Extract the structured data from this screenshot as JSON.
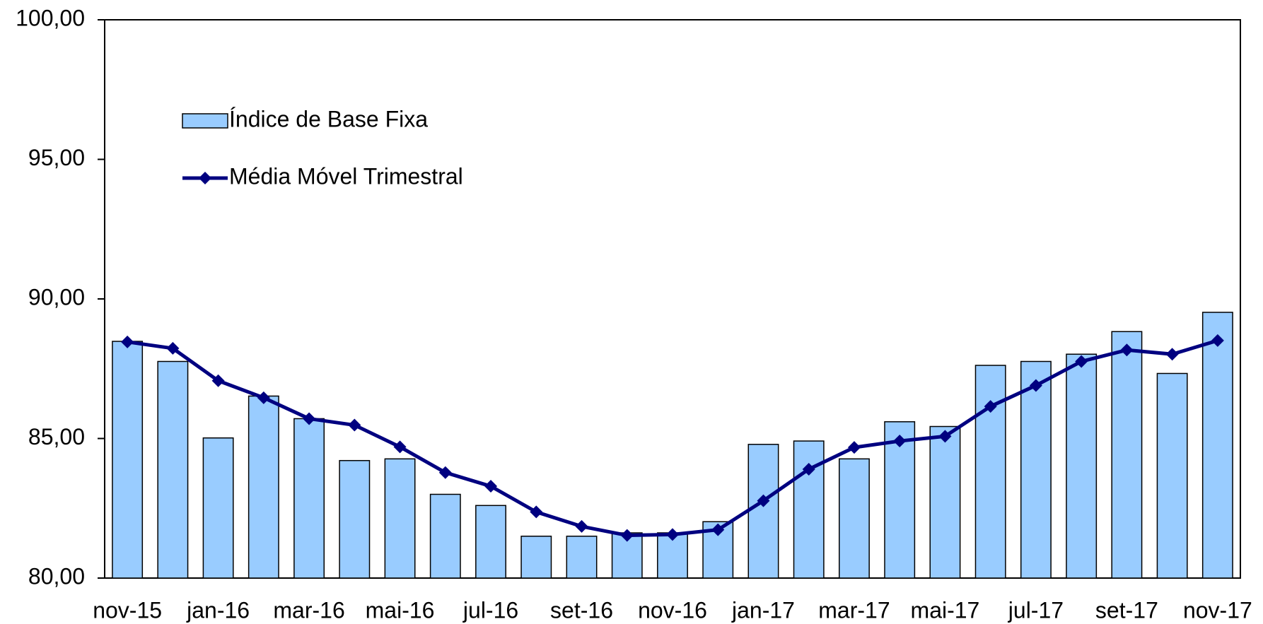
{
  "chart_data": {
    "type": "bar_line",
    "categories": [
      "nov-15",
      null,
      "jan-16",
      null,
      "mar-16",
      null,
      "mai-16",
      null,
      "jul-16",
      null,
      "set-16",
      null,
      "nov-16",
      null,
      "jan-17",
      null,
      "mar-17",
      null,
      "mai-17",
      null,
      "jul-17",
      null,
      "set-17",
      null,
      "nov-17"
    ],
    "series": [
      {
        "name": "Índice de Base Fixa",
        "type": "bar",
        "color": "#99ccff",
        "values": [
          88.48,
          87.76,
          85.02,
          86.52,
          85.71,
          84.21,
          84.27,
          83.0,
          82.6,
          81.5,
          81.5,
          81.62,
          81.62,
          82.02,
          84.79,
          84.91,
          84.27,
          85.6,
          85.43,
          87.62,
          87.76,
          88.02,
          88.83,
          87.33,
          89.52
        ]
      },
      {
        "name": "Média Móvel Trimestral",
        "type": "line",
        "color": "#000080",
        "values": [
          88.46,
          88.23,
          87.07,
          86.46,
          85.71,
          85.48,
          84.7,
          83.78,
          83.29,
          82.37,
          81.85,
          81.53,
          81.56,
          81.73,
          82.77,
          83.9,
          84.68,
          84.91,
          85.08,
          86.15,
          86.9,
          87.76,
          88.17,
          88.02,
          88.51
        ]
      }
    ],
    "ylim": [
      80,
      100
    ],
    "yticks": [
      {
        "value": 80,
        "label": "80,00"
      },
      {
        "value": 85,
        "label": "85,00"
      },
      {
        "value": 90,
        "label": "90,00"
      },
      {
        "value": 95,
        "label": "95,00"
      },
      {
        "value": 100,
        "label": "100,00"
      }
    ],
    "legend": "upper left",
    "grid": false
  }
}
